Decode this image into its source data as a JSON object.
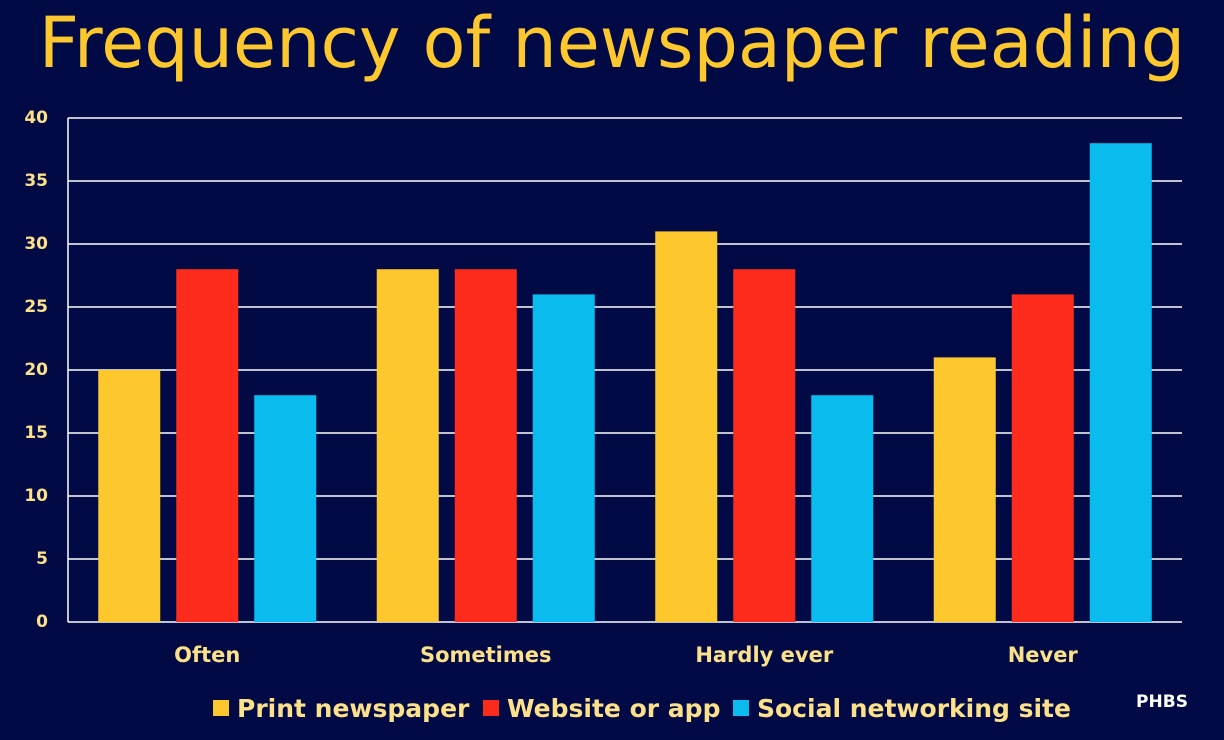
{
  "chart_data": {
    "type": "bar",
    "title": "Frequency of newspaper reading",
    "categories": [
      "Often",
      "Sometimes",
      "Hardly ever",
      "Never"
    ],
    "series": [
      {
        "name": "Print newspaper",
        "color": "#fdc72e",
        "values": [
          20,
          28,
          31,
          21
        ]
      },
      {
        "name": "Website or app",
        "color": "#fd2b1c",
        "values": [
          28,
          28,
          28,
          26
        ]
      },
      {
        "name": "Social networking site",
        "color": "#09bced",
        "values": [
          18,
          26,
          18,
          38
        ]
      }
    ],
    "ylim": [
      0,
      40
    ],
    "yticks": [
      0,
      5,
      10,
      15,
      20,
      25,
      30,
      35,
      40
    ],
    "grid": true,
    "legend": "bottom"
  },
  "logo": "PHBS"
}
